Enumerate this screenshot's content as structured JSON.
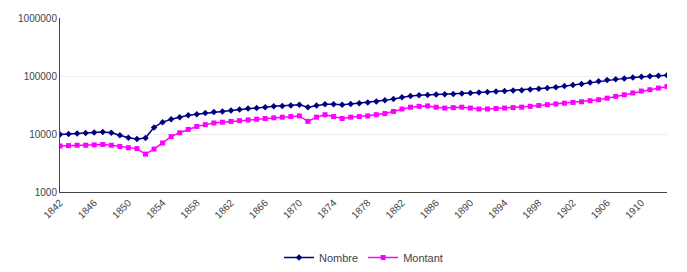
{
  "chart_data": {
    "type": "line",
    "x": [
      1842,
      1843,
      1844,
      1845,
      1846,
      1847,
      1848,
      1849,
      1850,
      1851,
      1852,
      1853,
      1854,
      1855,
      1856,
      1857,
      1858,
      1859,
      1860,
      1861,
      1862,
      1863,
      1864,
      1865,
      1866,
      1867,
      1868,
      1869,
      1870,
      1871,
      1872,
      1873,
      1874,
      1875,
      1876,
      1877,
      1878,
      1879,
      1880,
      1881,
      1882,
      1883,
      1884,
      1885,
      1886,
      1887,
      1888,
      1889,
      1890,
      1891,
      1892,
      1893,
      1894,
      1895,
      1896,
      1897,
      1898,
      1899,
      1900,
      1901,
      1902,
      1903,
      1904,
      1905,
      1906,
      1907,
      1908,
      1909,
      1910,
      1911,
      1912,
      1913
    ],
    "series": [
      {
        "name": "Nombre",
        "color": "#000080",
        "marker": "diamond",
        "values": [
          9800,
          10000,
          10200,
          10400,
          10600,
          10800,
          10500,
          9500,
          8600,
          8200,
          8500,
          13000,
          16000,
          18000,
          19500,
          21000,
          22000,
          23000,
          24000,
          24500,
          25500,
          26500,
          27500,
          28000,
          29000,
          30000,
          30500,
          31000,
          32000,
          29000,
          31000,
          32500,
          32500,
          32000,
          33000,
          34000,
          35000,
          36500,
          38000,
          40000,
          43000,
          45000,
          46500,
          47000,
          48000,
          48500,
          49000,
          50000,
          51000,
          52000,
          53000,
          54000,
          55000,
          56000,
          57000,
          58500,
          60000,
          62000,
          64000,
          67000,
          70000,
          73000,
          77000,
          81000,
          85000,
          88000,
          91000,
          94000,
          97000,
          99000,
          101000,
          103000
        ]
      },
      {
        "name": "Montant",
        "color": "#FF00FF",
        "marker": "square",
        "values": [
          6200,
          6300,
          6400,
          6400,
          6500,
          6600,
          6400,
          6100,
          5800,
          5600,
          4500,
          5500,
          7000,
          9000,
          10500,
          12000,
          13500,
          14500,
          15500,
          16000,
          16500,
          17000,
          17500,
          18000,
          18500,
          19000,
          19500,
          20000,
          20500,
          16500,
          19500,
          21500,
          20000,
          18500,
          19500,
          20000,
          20500,
          21500,
          22500,
          24500,
          27000,
          29000,
          30000,
          30500,
          29000,
          28000,
          28500,
          29000,
          28000,
          27000,
          27000,
          27500,
          28000,
          28500,
          29000,
          30000,
          31000,
          32000,
          33000,
          34000,
          35000,
          36000,
          37500,
          39000,
          41500,
          44500,
          47500,
          51000,
          55000,
          58000,
          62000,
          66000
        ]
      }
    ],
    "xlim": [
      1842,
      1913
    ],
    "xticks": [
      1842,
      1846,
      1850,
      1854,
      1858,
      1862,
      1866,
      1870,
      1874,
      1878,
      1882,
      1886,
      1890,
      1894,
      1898,
      1902,
      1906,
      1910
    ],
    "ylim": [
      1000,
      1000000
    ],
    "yticks": [
      1000,
      10000,
      100000,
      1000000
    ],
    "log": "y",
    "grid": "y",
    "legend": "bottom"
  }
}
